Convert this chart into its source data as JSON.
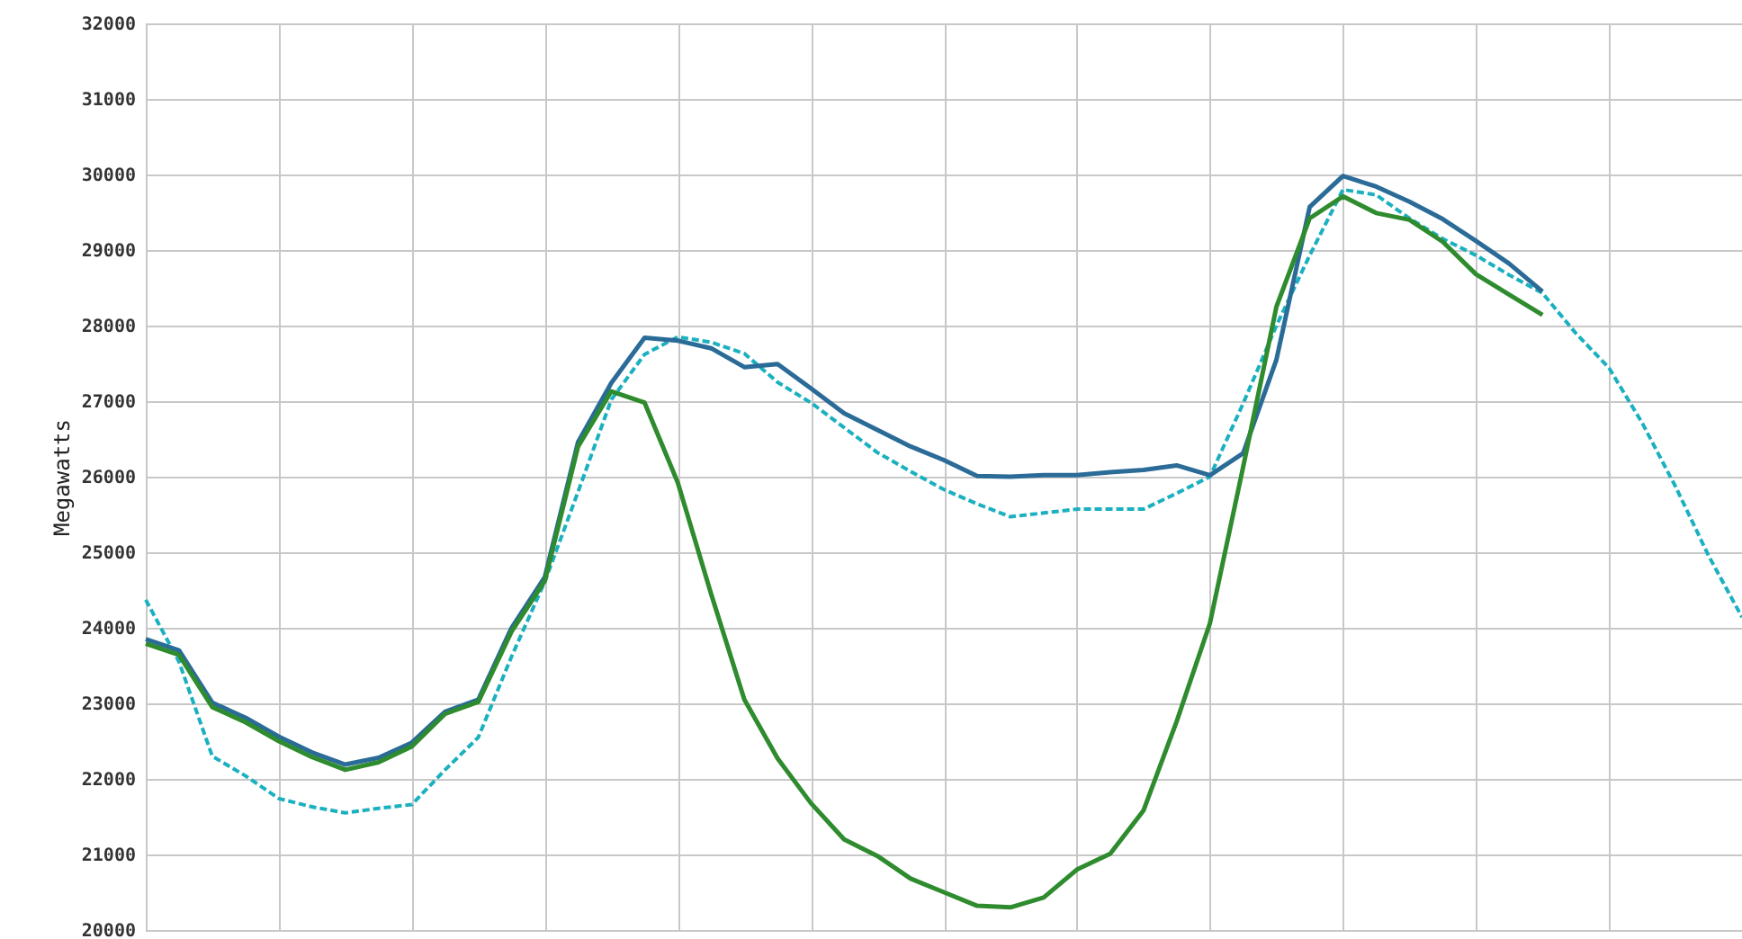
{
  "chart_data": {
    "type": "line",
    "ylabel": "Megawatts",
    "categories": [
      null,
      null,
      null,
      null,
      null,
      null,
      null,
      null,
      null,
      null,
      null,
      null,
      null,
      null,
      null,
      null,
      null,
      null,
      null,
      null,
      null,
      null,
      null,
      null,
      null,
      null,
      null,
      null,
      null,
      null,
      null,
      null,
      null,
      null,
      null,
      null,
      null,
      null,
      null,
      null,
      null,
      null,
      null,
      null,
      null,
      null,
      null,
      null,
      null
    ],
    "ylim": [
      20000,
      32000
    ],
    "yticks": [
      20000,
      21000,
      22000,
      23000,
      24000,
      25000,
      26000,
      27000,
      28000,
      29000,
      30000,
      31000,
      32000
    ],
    "grid": true,
    "series": [
      {
        "color": "#1ab0c0",
        "line_style": "dashed",
        "values": [
          24370,
          23550,
          22300,
          22040,
          21740,
          21630,
          21550,
          21610,
          21660,
          22120,
          22550,
          23620,
          24610,
          25800,
          27020,
          27620,
          27850,
          27780,
          27630,
          27250,
          26980,
          26650,
          26320,
          26070,
          25830,
          25640,
          25470,
          25520,
          25570,
          25570,
          25570,
          25780,
          26000,
          26970,
          28000,
          28930,
          29800,
          29730,
          29420,
          29150,
          28930,
          28670,
          28430,
          27900,
          27440,
          26710,
          25870,
          24950,
          24140
        ]
      },
      {
        "color": "#2a6b97",
        "line_style": "solid",
        "values": [
          23850,
          23700,
          23010,
          22810,
          22560,
          22350,
          22190,
          22280,
          22480,
          22890,
          23050,
          24000,
          24670,
          26460,
          27240,
          27840,
          27800,
          27700,
          27450,
          27490,
          27170,
          26840,
          26620,
          26400,
          26220,
          26010,
          26000,
          26020,
          26020,
          26060,
          26090,
          26150,
          26020,
          26310,
          27550,
          29570,
          29980,
          29840,
          29640,
          29410,
          29120,
          28820,
          28450,
          null,
          null,
          null,
          null,
          null,
          null
        ]
      },
      {
        "color": "#2e8b2e",
        "line_style": "solid",
        "values": [
          23790,
          23640,
          22950,
          22750,
          22500,
          22290,
          22120,
          22220,
          22430,
          22860,
          23020,
          23950,
          24620,
          26400,
          27130,
          26980,
          25920,
          24450,
          23050,
          22270,
          21680,
          21200,
          20980,
          20680,
          20500,
          20320,
          20300,
          20430,
          20800,
          21010,
          21580,
          22760,
          24060,
          26130,
          28250,
          29420,
          29710,
          29490,
          29400,
          29110,
          28680,
          28410,
          28140,
          null,
          null,
          null,
          null,
          null,
          null
        ]
      }
    ]
  }
}
